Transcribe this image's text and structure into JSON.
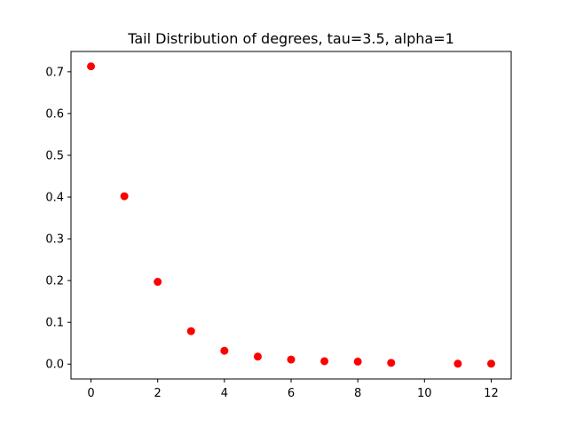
{
  "chart_data": {
    "type": "scatter",
    "title": "Tail Distribution of degrees, tau=3.5, alpha=1",
    "xlabel": "",
    "ylabel": "",
    "x": [
      0,
      1,
      2,
      3,
      4,
      5,
      6,
      7,
      8,
      9,
      11,
      12
    ],
    "y": [
      0.713,
      0.402,
      0.197,
      0.079,
      0.032,
      0.018,
      0.011,
      0.007,
      0.006,
      0.003,
      0.001,
      0.001
    ],
    "xlim": [
      -0.6,
      12.6
    ],
    "ylim": [
      -0.0356,
      0.7486
    ],
    "xticks": [
      0,
      2,
      4,
      6,
      8,
      10,
      12
    ],
    "yticks": [
      0.0,
      0.1,
      0.2,
      0.3,
      0.4,
      0.5,
      0.6,
      0.7
    ],
    "xtick_labels": [
      "0",
      "2",
      "4",
      "6",
      "8",
      "10",
      "12"
    ],
    "ytick_labels": [
      "0.0",
      "0.1",
      "0.2",
      "0.3",
      "0.4",
      "0.5",
      "0.6",
      "0.7"
    ],
    "marker_color": "#ff0000",
    "grid": false,
    "legend": false
  }
}
